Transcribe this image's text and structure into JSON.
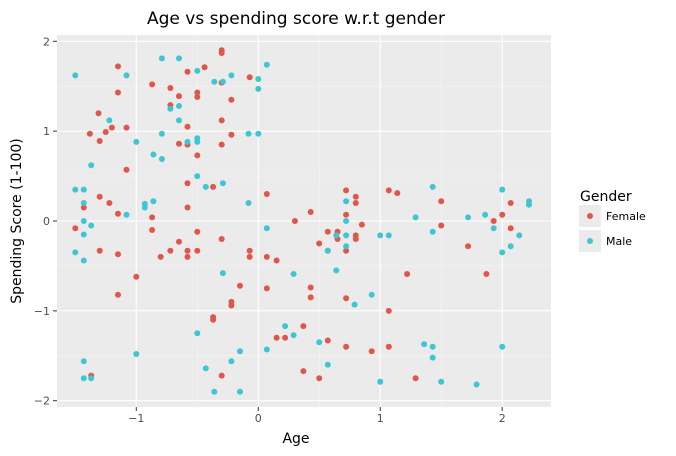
{
  "chart_data": {
    "type": "scatter",
    "title": "Age vs spending score w.r.t gender",
    "xlabel": "Age",
    "ylabel": "Spending Score (1-100)",
    "xlim": [
      -1.65,
      2.4
    ],
    "ylim": [
      -2.07,
      2.07
    ],
    "xticks": [
      -1,
      0,
      1,
      2
    ],
    "xtick_labels": [
      "−1",
      "0",
      "1",
      "2"
    ],
    "yticks": [
      -2,
      -1,
      0,
      1,
      2
    ],
    "ytick_labels": [
      "−2",
      "−1",
      "0",
      "1",
      "2"
    ],
    "grid": true,
    "legend": {
      "title": "Gender",
      "position": "right"
    },
    "series": [
      {
        "name": "Female",
        "color": "#e0564b",
        "points": [
          [
            -1.5,
            -0.08
          ],
          [
            -1.43,
            0.15
          ],
          [
            -1.38,
            0.97
          ],
          [
            -1.37,
            -1.72
          ],
          [
            -1.31,
            1.2
          ],
          [
            -1.3,
            0.27
          ],
          [
            -1.3,
            -0.33
          ],
          [
            -1.3,
            0.89
          ],
          [
            -1.25,
            0.99
          ],
          [
            -1.2,
            1.04
          ],
          [
            -1.22,
            0.2
          ],
          [
            -1.15,
            1.72
          ],
          [
            -1.15,
            1.43
          ],
          [
            -1.15,
            0.08
          ],
          [
            -1.15,
            -0.37
          ],
          [
            -1.15,
            -0.82
          ],
          [
            -1.08,
            1.04
          ],
          [
            -1.08,
            0.57
          ],
          [
            -1.0,
            -0.62
          ],
          [
            -0.87,
            1.52
          ],
          [
            -0.87,
            0.04
          ],
          [
            -0.87,
            -0.1
          ],
          [
            -0.8,
            -0.4
          ],
          [
            -0.72,
            1.48
          ],
          [
            -0.72,
            1.29
          ],
          [
            -0.72,
            -0.33
          ],
          [
            -0.65,
            1.39
          ],
          [
            -0.65,
            0.86
          ],
          [
            -0.65,
            -0.23
          ],
          [
            -0.58,
            1.66
          ],
          [
            -0.58,
            1.05
          ],
          [
            -0.58,
            0.85
          ],
          [
            -0.58,
            0.42
          ],
          [
            -0.58,
            0.15
          ],
          [
            -0.58,
            -0.33
          ],
          [
            -0.58,
            -0.4
          ],
          [
            -0.5,
            1.43
          ],
          [
            -0.5,
            1.38
          ],
          [
            -0.5,
            0.73
          ],
          [
            -0.5,
            -0.12
          ],
          [
            -0.5,
            -0.33
          ],
          [
            -0.44,
            1.71
          ],
          [
            -0.37,
            0.38
          ],
          [
            -0.37,
            -1.07
          ],
          [
            -0.37,
            -1.1
          ],
          [
            -0.3,
            1.87
          ],
          [
            -0.3,
            1.9
          ],
          [
            -0.3,
            1.54
          ],
          [
            -0.3,
            1.12
          ],
          [
            -0.3,
            0.85
          ],
          [
            -0.3,
            -0.2
          ],
          [
            -0.3,
            -1.72
          ],
          [
            -0.22,
            1.35
          ],
          [
            -0.22,
            0.96
          ],
          [
            -0.22,
            -0.9
          ],
          [
            -0.22,
            -0.94
          ],
          [
            -0.15,
            -0.72
          ],
          [
            -0.07,
            1.6
          ],
          [
            -0.07,
            -0.33
          ],
          [
            -0.07,
            -0.4
          ],
          [
            0.07,
            -0.4
          ],
          [
            0.07,
            -0.75
          ],
          [
            0.07,
            0.3
          ],
          [
            0.15,
            -0.44
          ],
          [
            0.15,
            -1.3
          ],
          [
            0.22,
            -1.3
          ],
          [
            0.3,
            0.0
          ],
          [
            0.37,
            -1.17
          ],
          [
            0.37,
            -1.67
          ],
          [
            0.43,
            0.1
          ],
          [
            0.43,
            -0.74
          ],
          [
            0.43,
            -0.85
          ],
          [
            0.5,
            -0.25
          ],
          [
            0.5,
            -1.75
          ],
          [
            0.57,
            -0.12
          ],
          [
            0.57,
            -0.33
          ],
          [
            0.57,
            -1.33
          ],
          [
            0.65,
            -0.12
          ],
          [
            0.65,
            -0.2
          ],
          [
            0.72,
            0.34
          ],
          [
            0.72,
            0.07
          ],
          [
            0.72,
            -0.33
          ],
          [
            0.72,
            -0.86
          ],
          [
            0.72,
            -1.4
          ],
          [
            0.8,
            0.27
          ],
          [
            0.8,
            0.2
          ],
          [
            0.8,
            -0.16
          ],
          [
            0.8,
            -0.2
          ],
          [
            0.85,
            -0.04
          ],
          [
            0.93,
            -1.45
          ],
          [
            1.07,
            0.34
          ],
          [
            1.07,
            -1.0
          ],
          [
            1.07,
            -1.4
          ],
          [
            1.14,
            0.31
          ],
          [
            1.22,
            -0.59
          ],
          [
            1.29,
            -1.75
          ],
          [
            1.5,
            0.22
          ],
          [
            1.5,
            -0.05
          ],
          [
            1.72,
            -0.28
          ],
          [
            1.87,
            -0.59
          ],
          [
            1.93,
            0.0
          ],
          [
            2.0,
            0.07
          ],
          [
            2.07,
            0.2
          ],
          [
            2.07,
            -0.08
          ]
        ]
      },
      {
        "name": "Male",
        "color": "#3fc6d3",
        "points": [
          [
            -1.5,
            1.62
          ],
          [
            -1.5,
            0.35
          ],
          [
            -1.5,
            -0.35
          ],
          [
            -1.43,
            0.35
          ],
          [
            -1.43,
            0.2
          ],
          [
            -1.43,
            0.0
          ],
          [
            -1.43,
            -0.15
          ],
          [
            -1.43,
            -0.44
          ],
          [
            -1.43,
            -1.56
          ],
          [
            -1.43,
            -1.75
          ],
          [
            -1.37,
            0.62
          ],
          [
            -1.37,
            -0.05
          ],
          [
            -1.37,
            -1.75
          ],
          [
            -1.22,
            1.12
          ],
          [
            -1.08,
            1.62
          ],
          [
            -1.08,
            0.07
          ],
          [
            -1.0,
            0.88
          ],
          [
            -1.0,
            -1.48
          ],
          [
            -0.93,
            0.15
          ],
          [
            -0.93,
            0.19
          ],
          [
            -0.86,
            0.22
          ],
          [
            -0.86,
            0.74
          ],
          [
            -0.79,
            1.81
          ],
          [
            -0.79,
            0.97
          ],
          [
            -0.79,
            0.69
          ],
          [
            -0.72,
            1.25
          ],
          [
            -0.65,
            1.81
          ],
          [
            -0.65,
            1.28
          ],
          [
            -0.65,
            1.12
          ],
          [
            -0.58,
            0.88
          ],
          [
            -0.5,
            1.67
          ],
          [
            -0.5,
            0.92
          ],
          [
            -0.5,
            0.88
          ],
          [
            -0.5,
            0.5
          ],
          [
            -0.5,
            -1.25
          ],
          [
            -0.43,
            0.38
          ],
          [
            -0.43,
            -1.64
          ],
          [
            -0.36,
            1.55
          ],
          [
            -0.36,
            -1.9
          ],
          [
            -0.29,
            1.55
          ],
          [
            -0.29,
            0.42
          ],
          [
            -0.29,
            -0.58
          ],
          [
            -0.22,
            1.62
          ],
          [
            -0.22,
            -1.56
          ],
          [
            -0.15,
            -1.45
          ],
          [
            -0.15,
            -1.9
          ],
          [
            -0.08,
            0.97
          ],
          [
            -0.08,
            0.2
          ],
          [
            0.0,
            1.58
          ],
          [
            0.0,
            1.47
          ],
          [
            0.0,
            0.97
          ],
          [
            0.07,
            1.74
          ],
          [
            0.07,
            -0.08
          ],
          [
            0.07,
            -1.43
          ],
          [
            0.22,
            -1.17
          ],
          [
            0.29,
            -1.27
          ],
          [
            0.29,
            -0.59
          ],
          [
            0.5,
            -1.35
          ],
          [
            0.57,
            -0.33
          ],
          [
            0.57,
            -1.6
          ],
          [
            0.64,
            -0.55
          ],
          [
            0.64,
            -0.16
          ],
          [
            0.72,
            0.22
          ],
          [
            0.72,
            0.0
          ],
          [
            0.72,
            -0.16
          ],
          [
            0.72,
            -0.28
          ],
          [
            0.79,
            -0.93
          ],
          [
            0.93,
            -0.82
          ],
          [
            1.0,
            -0.16
          ],
          [
            1.0,
            -1.79
          ],
          [
            1.07,
            -0.16
          ],
          [
            1.29,
            0.04
          ],
          [
            1.36,
            -1.37
          ],
          [
            1.43,
            0.38
          ],
          [
            1.43,
            -0.12
          ],
          [
            1.43,
            -1.4
          ],
          [
            1.43,
            -1.52
          ],
          [
            1.5,
            -1.79
          ],
          [
            1.72,
            0.04
          ],
          [
            1.79,
            -1.82
          ],
          [
            1.86,
            0.07
          ],
          [
            1.93,
            -0.08
          ],
          [
            2.0,
            0.35
          ],
          [
            2.0,
            -0.35
          ],
          [
            2.0,
            -1.4
          ],
          [
            2.07,
            -0.28
          ],
          [
            2.14,
            -0.16
          ],
          [
            2.22,
            0.22
          ],
          [
            2.22,
            0.18
          ]
        ]
      }
    ]
  }
}
